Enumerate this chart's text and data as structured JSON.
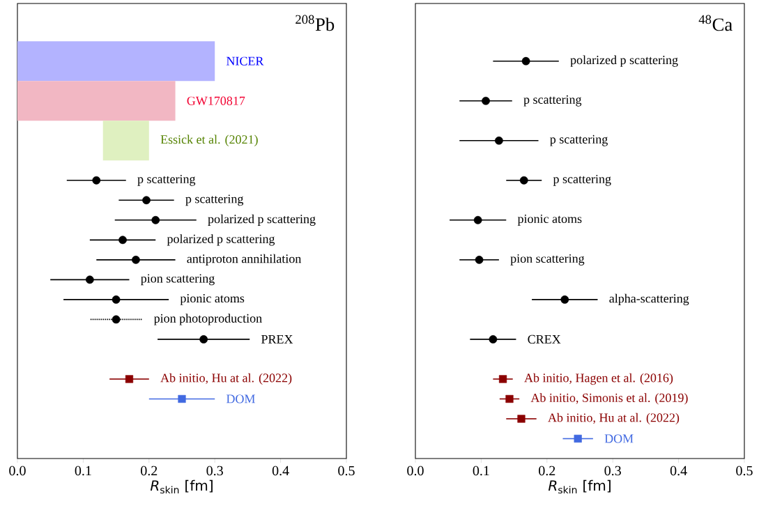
{
  "chart_data": [
    {
      "type": "scatter",
      "orientation": "horizontal",
      "title": "$^{208}$Pb",
      "xlabel": "*R*$_{skin}$ [fm]",
      "categories": [
        "NICER",
        null,
        "GW170817",
        null,
        "Essick et al. (2021)",
        null,
        "p scattering",
        "p scattering",
        "polarized p scattering",
        "polarized p scattering",
        "antiproton annihilation",
        "pion scattering",
        "pionic atoms",
        "pion photoproduction",
        "PREX",
        null,
        "Ab initio, Hu at al. (2022)",
        "DOM",
        null,
        null
      ],
      "xlim": [
        0,
        0.5
      ],
      "xticks": [
        {
          "value": 0,
          "label": "0.0"
        },
        0.1,
        0.2,
        0.3,
        0.4,
        0.5
      ],
      "tick_labels": "x",
      "series": [
        {
          "type": "bar",
          "colors": [
            "#b3b3ff",
            null,
            "#f2b7c3",
            null,
            "#dff0c0",
            null,
            null,
            null,
            null,
            null,
            null,
            null,
            null,
            null,
            null,
            null,
            null,
            null,
            null,
            null
          ],
          "values": [
            0.3,
            null,
            0.24,
            null,
            0.07,
            null,
            null,
            null,
            null,
            null,
            null,
            null,
            null,
            null,
            null,
            null,
            null,
            null,
            null,
            null
          ],
          "base": [
            0,
            null,
            0,
            null,
            0.13,
            null,
            null,
            null,
            null,
            null,
            null,
            null,
            null,
            null,
            null,
            null,
            null,
            null,
            null,
            null
          ]
        },
        {
          "color": "#000000",
          "marker": "circle",
          "values": [
            null,
            null,
            null,
            null,
            null,
            null,
            0.12,
            0.196,
            0.21,
            0.16,
            0.18,
            0.11,
            0.15,
            null,
            0.283,
            null,
            null,
            null,
            null,
            null
          ],
          "errors": [
            null,
            null,
            null,
            null,
            null,
            null,
            0.045,
            0.042,
            0.062,
            0.05,
            0.06,
            0.06,
            0.08,
            null,
            0.07,
            null,
            null,
            null,
            null,
            null
          ]
        },
        {
          "color": "#000000",
          "marker": "circle",
          "line_style": "dotted",
          "values": [
            null,
            null,
            null,
            null,
            null,
            null,
            null,
            null,
            null,
            null,
            null,
            null,
            null,
            0.15,
            null,
            null,
            null,
            null,
            null,
            null
          ],
          "errors": [
            null,
            null,
            null,
            null,
            null,
            null,
            null,
            null,
            null,
            null,
            null,
            null,
            null,
            0.04,
            null,
            null,
            null,
            null,
            null,
            null
          ]
        },
        {
          "color": "#8b0000",
          "marker": "square",
          "values": [
            null,
            null,
            null,
            null,
            null,
            null,
            null,
            null,
            null,
            null,
            null,
            null,
            null,
            null,
            null,
            null,
            0.17,
            null,
            null,
            null
          ],
          "errors": [
            null,
            null,
            null,
            null,
            null,
            null,
            null,
            null,
            null,
            null,
            null,
            null,
            null,
            null,
            null,
            null,
            0.03,
            null,
            null,
            null
          ]
        },
        {
          "color": "#4169e1",
          "marker": "square",
          "values": [
            null,
            null,
            null,
            null,
            null,
            null,
            null,
            null,
            null,
            null,
            null,
            null,
            null,
            null,
            null,
            null,
            null,
            0.25,
            null,
            null
          ],
          "errors": [
            null,
            null,
            null,
            null,
            null,
            null,
            null,
            null,
            null,
            null,
            null,
            null,
            null,
            null,
            null,
            null,
            null,
            0.05,
            null,
            null
          ]
        }
      ]
    },
    {
      "type": "scatter",
      "orientation": "horizontal",
      "title": "$^{48}$Ca",
      "xlabel": "*R*$_{skin}$ [fm]",
      "categories": [
        "polarized p scattering",
        null,
        "p scattering",
        null,
        "p scattering",
        null,
        "p scattering",
        null,
        "pionic atoms",
        null,
        "pion scattering",
        null,
        "alpha-scattering",
        null,
        "CREX",
        null,
        "Ab initio, Hagen et al. (2016)",
        "Ab initio, Simonis et al. (2019)",
        "Ab initio, Hu at al. (2022)",
        "DOM"
      ],
      "xlim": [
        0,
        0.5
      ],
      "xticks": [
        {
          "value": 0,
          "label": "0.0"
        },
        0.1,
        0.2,
        0.3,
        0.4,
        0.5
      ],
      "tick_labels": "x",
      "series": [
        {
          "color": "#000000",
          "marker": "circle",
          "values": [
            0.168,
            null,
            0.107,
            null,
            0.127,
            null,
            0.165,
            null,
            0.095,
            null,
            0.097,
            null,
            0.227,
            null,
            0.118,
            null,
            null,
            null,
            null,
            null
          ],
          "errors": [
            0.05,
            null,
            0.04,
            null,
            0.06,
            null,
            0.027,
            null,
            0.043,
            null,
            0.03,
            null,
            0.05,
            null,
            0.035,
            null,
            null,
            null,
            null,
            null
          ]
        },
        {
          "color": "#8b0000",
          "marker": "square",
          "values": [
            null,
            null,
            null,
            null,
            null,
            null,
            null,
            null,
            null,
            null,
            null,
            null,
            null,
            null,
            null,
            null,
            0.133,
            0.143,
            0.161,
            null
          ],
          "errors": [
            null,
            null,
            null,
            null,
            null,
            null,
            null,
            null,
            null,
            null,
            null,
            null,
            null,
            null,
            null,
            null,
            0.015,
            0.015,
            0.023,
            null
          ]
        },
        {
          "color": "#4169e1",
          "marker": "square",
          "values": [
            null,
            null,
            null,
            null,
            null,
            null,
            null,
            null,
            null,
            null,
            null,
            null,
            null,
            null,
            null,
            null,
            null,
            null,
            null,
            0.247
          ],
          "errors": [
            null,
            null,
            null,
            null,
            null,
            null,
            null,
            null,
            null,
            null,
            null,
            null,
            null,
            null,
            null,
            null,
            null,
            null,
            null,
            0.023
          ]
        }
      ]
    }
  ]
}
